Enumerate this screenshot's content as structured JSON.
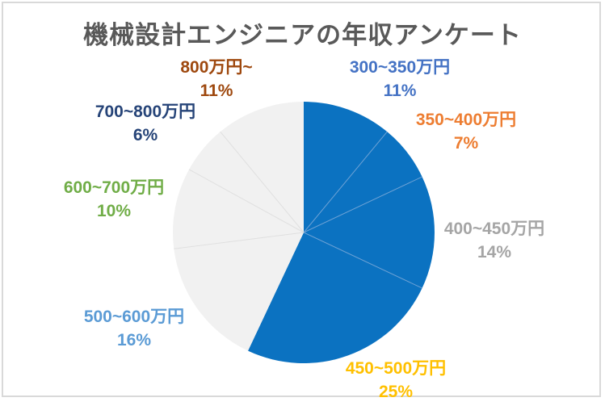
{
  "title": "機械設計エンジニアの年収アンケート",
  "frame_border_color": "#D9D9D9",
  "background_color": "#FFFFFF",
  "title_color": "#595959",
  "chart_data": {
    "type": "pie",
    "title": "機械設計エンジニアの年収アンケート",
    "start_angle_deg": 0,
    "direction": "clockwise",
    "legend_position": "none",
    "data_labels": "outside, category name and percentage",
    "highlight_fill": "#0B72C1",
    "muted_fill": "#F1F1F1",
    "divider_colors": {
      "#0B72C1": "#6FA3D6",
      "#F1F1F1": "#E0E0E0"
    },
    "slices": [
      {
        "label": "300~350万円",
        "value": 11,
        "pct_text": "11%",
        "fill": "#0B72C1",
        "label_color": "#4472C4"
      },
      {
        "label": "350~400万円",
        "value": 7,
        "pct_text": "7%",
        "fill": "#0B72C1",
        "label_color": "#ED7D31"
      },
      {
        "label": "400~450万円",
        "value": 14,
        "pct_text": "14%",
        "fill": "#0B72C1",
        "label_color": "#A5A5A5"
      },
      {
        "label": "450~500万円",
        "value": 25,
        "pct_text": "25%",
        "fill": "#0B72C1",
        "label_color": "#FFC000"
      },
      {
        "label": "500~600万円",
        "value": 16,
        "pct_text": "16%",
        "fill": "#F1F1F1",
        "label_color": "#5B9BD5"
      },
      {
        "label": "600~700万円",
        "value": 10,
        "pct_text": "10%",
        "fill": "#F1F1F1",
        "label_color": "#70AD47"
      },
      {
        "label": "700~800万円",
        "value": 6,
        "pct_text": "6%",
        "fill": "#F1F1F1",
        "label_color": "#264478"
      },
      {
        "label": "800万円~",
        "value": 11,
        "pct_text": "11%",
        "fill": "#F1F1F1",
        "label_color": "#9E480E"
      }
    ]
  }
}
